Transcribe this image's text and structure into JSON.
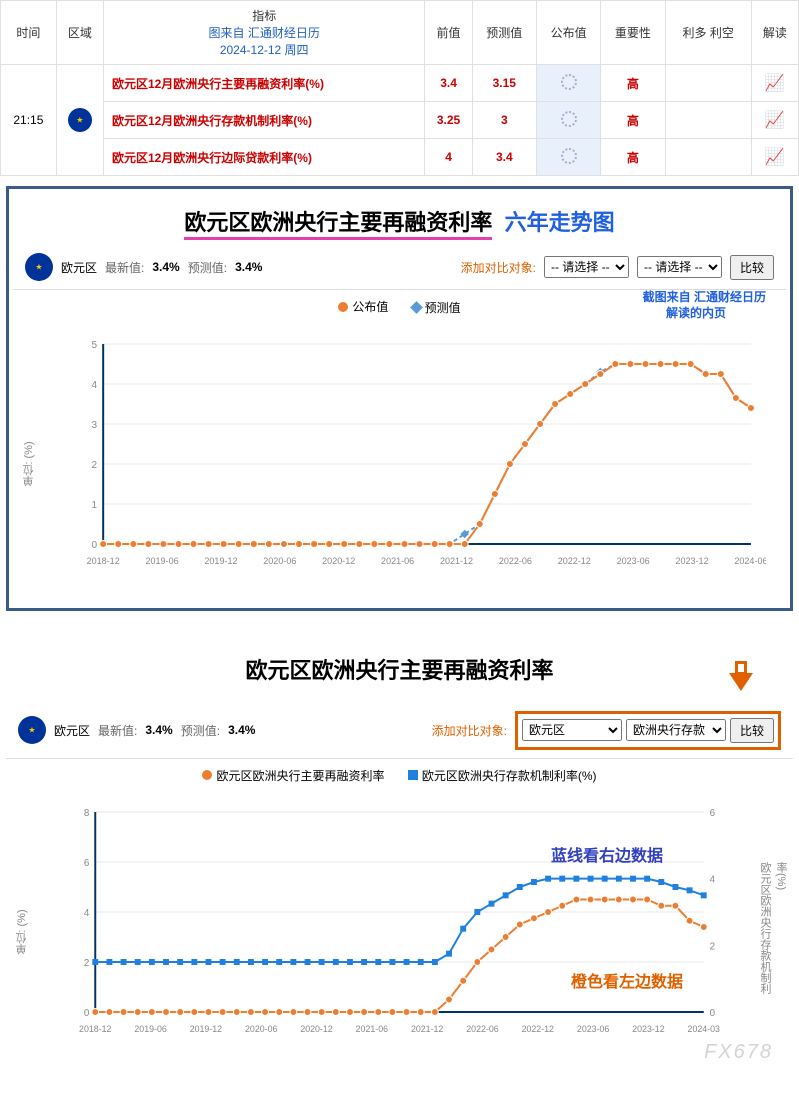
{
  "table": {
    "headers": [
      "时间",
      "区域",
      "指标",
      "前值",
      "预测值",
      "公布值",
      "重要性",
      "利多 利空",
      "解读"
    ],
    "source_line1": "图来自 汇通财经日历",
    "source_line2": "2024-12-12 周四",
    "time": "21:15",
    "rows": [
      {
        "indicator": "欧元区12月欧洲央行主要再融资利率(%)",
        "prev": "3.4",
        "forecast": "3.15",
        "importance": "高"
      },
      {
        "indicator": "欧元区12月欧洲央行存款机制利率(%)",
        "prev": "3.25",
        "forecast": "3",
        "importance": "高"
      },
      {
        "indicator": "欧元区12月欧洲央行边际贷款利率(%)",
        "prev": "4",
        "forecast": "3.4",
        "importance": "高"
      }
    ]
  },
  "chart1": {
    "title_main": "欧元区欧洲央行主要再融资利率",
    "title_sub": "六年走势图",
    "region": "欧元区",
    "latest_lbl": "最新值:",
    "latest_val": "3.4%",
    "forecast_lbl": "预测值:",
    "forecast_val": "3.4%",
    "add_compare": "添加对比对象:",
    "select_placeholder": "-- 请选择 --",
    "compare_btn": "比较",
    "legend_actual": "公布值",
    "legend_forecast": "预测值",
    "note1": "截图来自 汇通财经日历",
    "note2": "解读的内页",
    "ylabel": "单位: (%)",
    "ylim": [
      0,
      5
    ],
    "x_ticks": [
      "2018-12",
      "2019-06",
      "2019-12",
      "2020-06",
      "2020-12",
      "2021-06",
      "2021-12",
      "2022-06",
      "2022-12",
      "2023-06",
      "2023-12",
      "2024-06"
    ],
    "actual_color": "#ed7d31",
    "forecast_color": "#5a9bd5",
    "series_actual": [
      0,
      0,
      0,
      0,
      0,
      0,
      0,
      0,
      0,
      0,
      0,
      0,
      0,
      0,
      0,
      0,
      0,
      0,
      0,
      0,
      0,
      0,
      0,
      0,
      0,
      0.5,
      1.25,
      2,
      2.5,
      3,
      3.5,
      3.75,
      4,
      4.25,
      4.5,
      4.5,
      4.5,
      4.5,
      4.5,
      4.5,
      4.25,
      4.25,
      3.65,
      3.4
    ],
    "series_forecast": [
      0,
      0,
      0,
      0,
      0,
      0,
      0,
      0,
      0,
      0,
      0,
      0,
      0,
      0,
      0,
      0,
      0,
      0,
      0,
      0,
      0,
      0,
      0,
      0,
      0.25,
      0.5,
      1.25,
      2,
      2.5,
      3,
      3.5,
      3.75,
      4,
      4.3,
      4.5,
      4.5,
      4.5,
      4.5,
      4.5,
      4.5,
      4.25,
      4.25,
      3.65,
      3.4
    ]
  },
  "chart2": {
    "title": "欧元区欧洲央行主要再融资利率",
    "region": "欧元区",
    "latest_lbl": "最新值:",
    "latest_val": "3.4%",
    "forecast_lbl": "预测值:",
    "forecast_val": "3.4%",
    "add_compare": "添加对比对象:",
    "select1": "欧元区",
    "select2": "欧洲央行存款",
    "compare_btn": "比较",
    "legend1": "欧元区欧洲央行主要再融资利率",
    "legend2": "欧元区欧洲央行存款机制利率(%)",
    "ylabel_l": "单位: (%)",
    "ylabel_r": "欧元区欧洲央行存款机制利率(%)",
    "annot_blue": "蓝线看右边数据",
    "annot_orange": "橙色看左边数据",
    "watermark": "FX678",
    "ylim_l": [
      0,
      8
    ],
    "ylim_r": [
      0,
      6
    ],
    "x_ticks": [
      "2018-12",
      "2019-06",
      "2019-12",
      "2020-06",
      "2020-12",
      "2021-06",
      "2021-12",
      "2022-06",
      "2022-12",
      "2023-06",
      "2023-12",
      "2024-03"
    ],
    "color1": "#ed7d31",
    "color2": "#2080e0",
    "series1": [
      0,
      0,
      0,
      0,
      0,
      0,
      0,
      0,
      0,
      0,
      0,
      0,
      0,
      0,
      0,
      0,
      0,
      0,
      0,
      0,
      0,
      0,
      0,
      0,
      0,
      0.5,
      1.25,
      2,
      2.5,
      3,
      3.5,
      3.75,
      4,
      4.25,
      4.5,
      4.5,
      4.5,
      4.5,
      4.5,
      4.5,
      4.25,
      4.25,
      3.65,
      3.4
    ],
    "series2": [
      1.5,
      1.5,
      1.5,
      1.5,
      1.5,
      1.5,
      1.5,
      1.5,
      1.5,
      1.5,
      1.5,
      1.5,
      1.5,
      1.5,
      1.5,
      1.5,
      1.5,
      1.5,
      1.5,
      1.5,
      1.5,
      1.5,
      1.5,
      1.5,
      1.5,
      1.75,
      2.5,
      3,
      3.25,
      3.5,
      3.75,
      3.9,
      4,
      4,
      4,
      4,
      4,
      4,
      4,
      4,
      3.9,
      3.75,
      3.65,
      3.5
    ]
  }
}
